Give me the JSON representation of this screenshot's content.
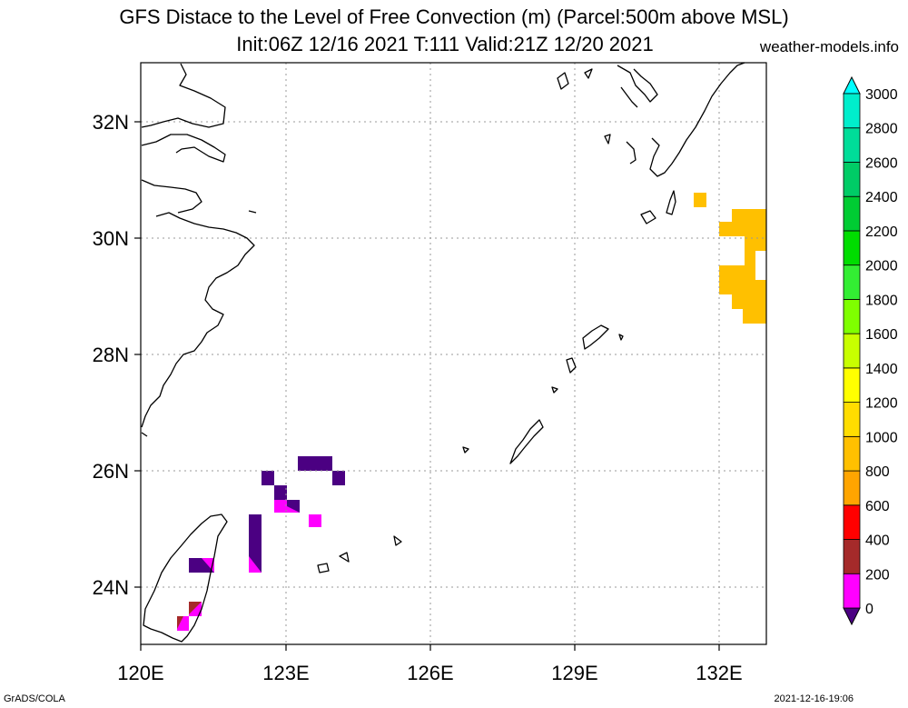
{
  "header": {
    "title_line1": "GFS Distace to the Level of Free Convection (m) (Parcel:500m above MSL)",
    "title_line2": "Init:06Z 12/16 2021 T:111 Valid:21Z 12/20 2021",
    "site": "weather-models.info"
  },
  "map": {
    "lon_labels": [
      "120E",
      "123E",
      "126E",
      "129E",
      "132E"
    ],
    "lat_labels": [
      "24N",
      "26N",
      "28N",
      "30N",
      "32N"
    ]
  },
  "colorbar": {
    "labels": [
      "0",
      "200",
      "400",
      "600",
      "800",
      "1000",
      "1200",
      "1400",
      "1600",
      "1800",
      "2000",
      "2200",
      "2400",
      "2600",
      "2800",
      "3000"
    ],
    "colors": [
      "#4b0082",
      "#ff00ff",
      "#a52a2a",
      "#ff0000",
      "#ffa500",
      "#ffc000",
      "#ffdd00",
      "#ffff00",
      "#c8ff00",
      "#7fff00",
      "#33ee33",
      "#00dd00",
      "#00cc33",
      "#00cc66",
      "#00dd99",
      "#00eecc",
      "#00ffff"
    ]
  },
  "footer": {
    "left": "GrADS/COLA",
    "right": "2021-12-16-19:06"
  }
}
